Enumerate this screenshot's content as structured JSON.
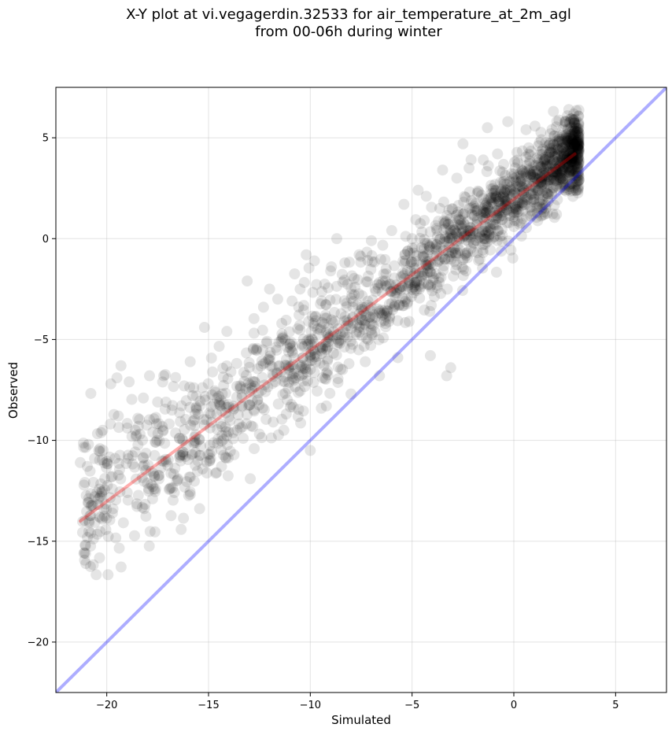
{
  "chart_data": {
    "type": "scatter",
    "title": [
      "X-Y plot at vi.vegagerdin.32533 for air_temperature_at_2m_agl",
      "from 00-06h during winter"
    ],
    "xlabel": "Simulated",
    "ylabel": "Observed",
    "xlim": [
      -22.5,
      7.5
    ],
    "ylim": [
      -22.5,
      7.5
    ],
    "xticks": [
      -20,
      -15,
      -10,
      -5,
      0,
      5
    ],
    "yticks": [
      -20,
      -15,
      -10,
      -5,
      0,
      5
    ],
    "tick_labels": {
      "x": [
        "−20",
        "−15",
        "−10",
        "−5",
        "0",
        "5"
      ],
      "y": [
        "−20",
        "−15",
        "−10",
        "−5",
        "0",
        "5"
      ]
    },
    "grid": true,
    "points": {
      "color": "#000000",
      "alpha": 0.1,
      "approx_count": 2000,
      "description_points": [
        [
          -21.3,
          -11.1
        ],
        [
          -20.9,
          -10.2
        ],
        [
          -20.6,
          -10.9
        ],
        [
          -20.4,
          -10.5
        ],
        [
          -20.2,
          -9.5
        ],
        [
          -19.8,
          -7.2
        ],
        [
          -19.5,
          -6.9
        ],
        [
          -19.3,
          -6.3
        ],
        [
          -18.9,
          -7.1
        ],
        [
          -18.6,
          -9.5
        ],
        [
          -18.2,
          -7.9
        ],
        [
          -17.9,
          -6.8
        ],
        [
          -17.5,
          -8.1
        ],
        [
          -17.2,
          -6.8
        ],
        [
          -16.8,
          -8.5
        ],
        [
          -16.2,
          -7.3
        ],
        [
          -15.9,
          -6.1
        ],
        [
          -15.6,
          -7.8
        ],
        [
          -15.2,
          -4.4
        ],
        [
          -14.9,
          -10.9
        ],
        [
          -14.6,
          -11.6
        ],
        [
          -14.4,
          -8.0
        ],
        [
          -14.1,
          -4.6
        ],
        [
          -13.6,
          -9.5
        ],
        [
          -13.1,
          -2.1
        ],
        [
          -12.8,
          -5.5
        ],
        [
          -12.3,
          -3.4
        ],
        [
          -12.0,
          -2.5
        ],
        [
          -11.6,
          -3.0
        ],
        [
          -11.3,
          -9.5
        ],
        [
          -10.9,
          -6.7
        ],
        [
          -10.5,
          -2.5
        ],
        [
          -10.2,
          -0.8
        ],
        [
          -10.0,
          -10.5
        ],
        [
          -9.8,
          -1.1
        ],
        [
          -9.4,
          -6.9
        ],
        [
          -9.0,
          -1.6
        ],
        [
          -8.7,
          0.0
        ],
        [
          -8.3,
          -1.2
        ],
        [
          -8.0,
          -7.7
        ],
        [
          -7.6,
          -0.8
        ],
        [
          -7.3,
          -6.1
        ],
        [
          -7.0,
          -0.1
        ],
        [
          -6.6,
          -6.8
        ],
        [
          -6.3,
          -2.3
        ],
        [
          -6.0,
          0.4
        ],
        [
          -5.7,
          -5.9
        ],
        [
          -5.4,
          1.7
        ],
        [
          -5.0,
          0.0
        ],
        [
          -4.7,
          2.4
        ],
        [
          -4.3,
          2.1
        ],
        [
          -4.1,
          -5.8
        ],
        [
          -3.8,
          0.5
        ],
        [
          -3.5,
          3.4
        ],
        [
          -3.3,
          -6.8
        ],
        [
          -3.1,
          -6.4
        ],
        [
          -2.8,
          3.0
        ],
        [
          -2.5,
          4.7
        ],
        [
          -2.2,
          3.5
        ],
        [
          -1.8,
          1.4
        ],
        [
          -1.5,
          3.9
        ],
        [
          -1.3,
          5.5
        ],
        [
          -0.8,
          4.2
        ],
        [
          -0.5,
          2.2
        ],
        [
          -0.3,
          5.8
        ],
        [
          0.0,
          0.6
        ],
        [
          0.3,
          2.6
        ],
        [
          0.6,
          5.4
        ],
        [
          0.9,
          1.2
        ],
        [
          1.2,
          4.6
        ],
        [
          1.5,
          1.7
        ],
        [
          1.8,
          5.2
        ],
        [
          2.1,
          3.3
        ],
        [
          2.4,
          5.4
        ],
        [
          2.7,
          6.4
        ],
        [
          2.9,
          4.8
        ],
        [
          3.0,
          5.2
        ],
        [
          -6.9,
          -4.3
        ],
        [
          -7.6,
          -4.4
        ],
        [
          -8.1,
          -6.2
        ]
      ]
    },
    "lines": [
      {
        "name": "",
        "color": "#ff0000",
        "alpha": 0.32,
        "x": [
          -21.3,
          3.0
        ],
        "y": [
          -14.0,
          4.2
        ]
      },
      {
        "name": "",
        "color": "#0000ff",
        "alpha": 0.32,
        "x": [
          -22.5,
          7.5
        ],
        "y": [
          -22.5,
          7.5
        ]
      }
    ]
  }
}
